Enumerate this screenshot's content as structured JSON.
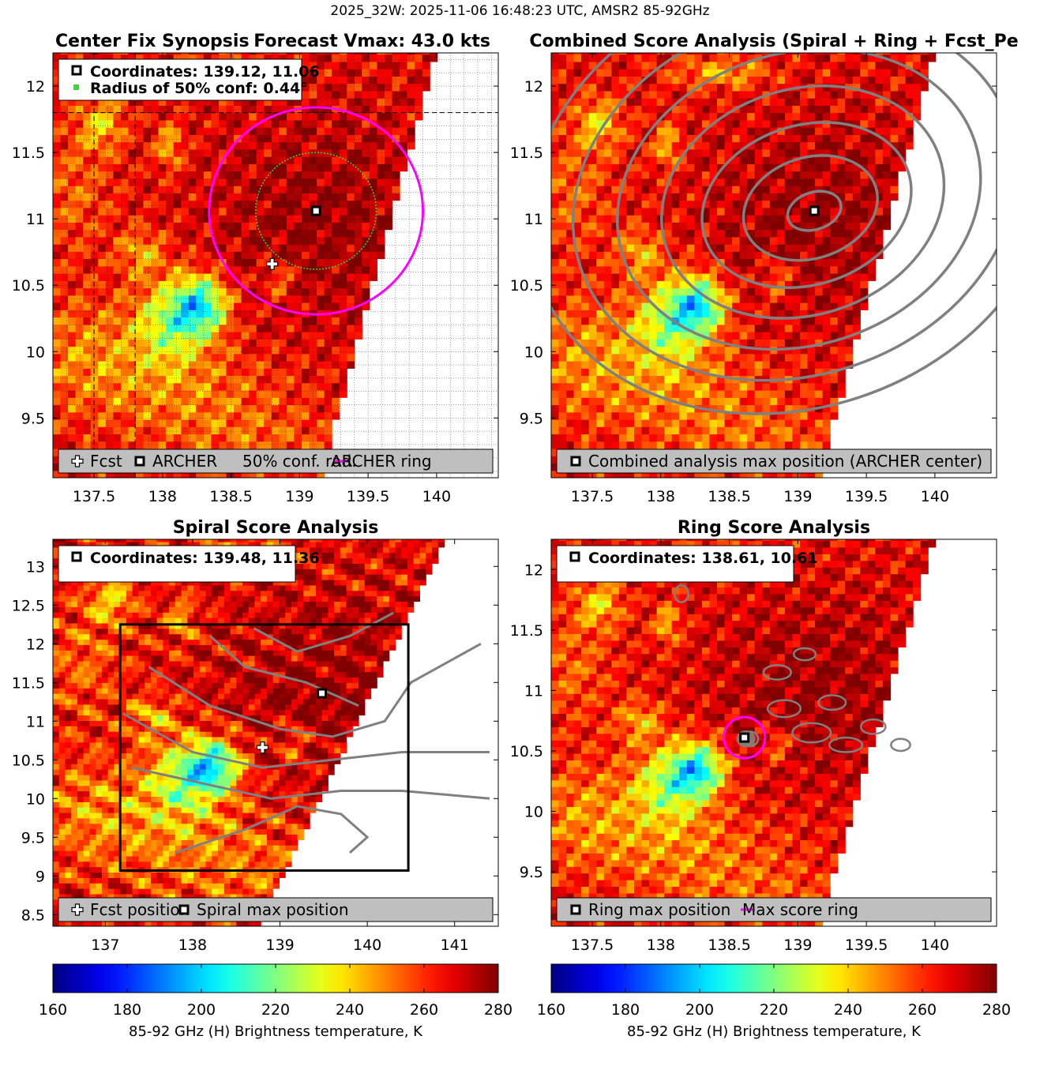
{
  "figure": {
    "suptitle": "2025_32W: 2025-11-06 16:48:23 UTC, AMSR2 85-92GHz"
  },
  "colors": {
    "forecast_marker": "#ffffff",
    "archer_marker": "#000000",
    "conf_circle": "#33dd33",
    "archer_ring": "#ff00ff",
    "contour": "#808080",
    "legend_bg": "#bfbfbf"
  },
  "chart_data": [
    {
      "type": "heatmap",
      "id": "center_fix",
      "title_left": "Center Fix Synopsis",
      "title_right": "Forecast Vmax: 43.0 kts",
      "xlim": [
        137.2,
        140.45
      ],
      "ylim": [
        9.05,
        12.25
      ],
      "xticks": [
        137.5,
        138,
        138.5,
        139,
        139.5,
        140
      ],
      "xtick_labels": [
        "137.5",
        "138",
        "138.5",
        "139",
        "139.5",
        "140"
      ],
      "yticks": [
        9.5,
        10,
        10.5,
        11,
        11.5,
        12
      ],
      "ytick_labels": [
        "9.5",
        "10",
        "10.5",
        "11",
        "11.5",
        "12"
      ],
      "grid": true,
      "info_lines": [
        "Coordinates: 139.12, 11.06",
        "Radius of 50% conf: 0.44°"
      ],
      "archer_center": [
        139.12,
        11.06
      ],
      "forecast_position": [
        138.8,
        10.66
      ],
      "conf_radius_deg": 0.44,
      "archer_ring_radius_deg": 0.78,
      "legend": [
        "Fcst",
        "ARCHER",
        "50% conf. rad.",
        "ARCHER ring"
      ],
      "swath_edge_x_at_top": 140.0,
      "swath_edge_x_at_bottom": 139.15
    },
    {
      "type": "heatmap",
      "id": "combined",
      "title": "Combined Score Analysis (Spiral + Ring + Fcst_Pe",
      "xlim": [
        137.2,
        140.45
      ],
      "ylim": [
        9.05,
        12.25
      ],
      "xticks": [
        137.5,
        138,
        138.5,
        139,
        139.5,
        140
      ],
      "xtick_labels": [
        "137.5",
        "138",
        "138.5",
        "139",
        "139.5",
        "140"
      ],
      "yticks": [
        9.5,
        10,
        10.5,
        11,
        11.5,
        12
      ],
      "ytick_labels": [
        "9.5",
        "10",
        "10.5",
        "11",
        "11.5",
        "12"
      ],
      "grid": false,
      "max_position": [
        139.12,
        11.06
      ],
      "legend": [
        "Combined analysis max position (ARCHER center)"
      ],
      "swath_edge_x_at_top": 140.0,
      "swath_edge_x_at_bottom": 139.15
    },
    {
      "type": "heatmap",
      "id": "spiral",
      "title": "Spiral Score Analysis",
      "xlim": [
        136.4,
        141.5
      ],
      "ylim": [
        8.35,
        13.35
      ],
      "xticks": [
        137,
        138,
        139,
        140,
        141
      ],
      "xtick_labels": [
        "137",
        "138",
        "139",
        "140",
        "141"
      ],
      "yticks": [
        8.5,
        9,
        9.5,
        10,
        10.5,
        11,
        11.5,
        12,
        12.5,
        13
      ],
      "ytick_labels": [
        "8.5",
        "9",
        "9.5",
        "10",
        "10.5",
        "11",
        "11.5",
        "12",
        "12.5",
        "13"
      ],
      "grid": false,
      "info_lines": [
        "Coordinates: 139.48, 11.36"
      ],
      "spiral_max": [
        139.48,
        11.36
      ],
      "forecast_position": [
        138.8,
        10.66
      ],
      "analysis_box": [
        137.17,
        9.07,
        140.47,
        12.25
      ],
      "legend": [
        "Fcst position",
        "Spiral max position"
      ],
      "swath_edge_x_at_top": 140.9,
      "swath_edge_x_at_bottom": 138.75
    },
    {
      "type": "heatmap",
      "id": "ring",
      "title": "Ring Score Analysis",
      "xlim": [
        137.2,
        140.45
      ],
      "ylim": [
        9.05,
        12.25
      ],
      "xticks": [
        137.5,
        138,
        138.5,
        139,
        139.5,
        140
      ],
      "xtick_labels": [
        "137.5",
        "138",
        "138.5",
        "139",
        "139.5",
        "140"
      ],
      "yticks": [
        9.5,
        10,
        10.5,
        11,
        11.5,
        12
      ],
      "ytick_labels": [
        "9.5",
        "10",
        "10.5",
        "11",
        "11.5",
        "12"
      ],
      "grid": false,
      "info_lines": [
        "Coordinates: 138.61, 10.61"
      ],
      "ring_max": [
        138.61,
        10.61
      ],
      "max_score_ring_radius_deg": 0.15,
      "legend": [
        "Ring max position",
        "Max score ring"
      ],
      "swath_edge_x_at_top": 140.0,
      "swath_edge_x_at_bottom": 139.15
    }
  ],
  "colorbars": [
    {
      "range": [
        160,
        280
      ],
      "ticks": [
        "160",
        "180",
        "200",
        "220",
        "240",
        "260",
        "280"
      ],
      "label": "85-92 GHz (H) Brightness temperature, K"
    },
    {
      "range": [
        160,
        280
      ],
      "ticks": [
        "160",
        "180",
        "200",
        "220",
        "240",
        "260",
        "280"
      ],
      "label": "85-92 GHz (H) Brightness temperature, K"
    }
  ],
  "icons": {
    "forecast": "white-cross-icon",
    "archer": "black-square-marker-icon"
  }
}
